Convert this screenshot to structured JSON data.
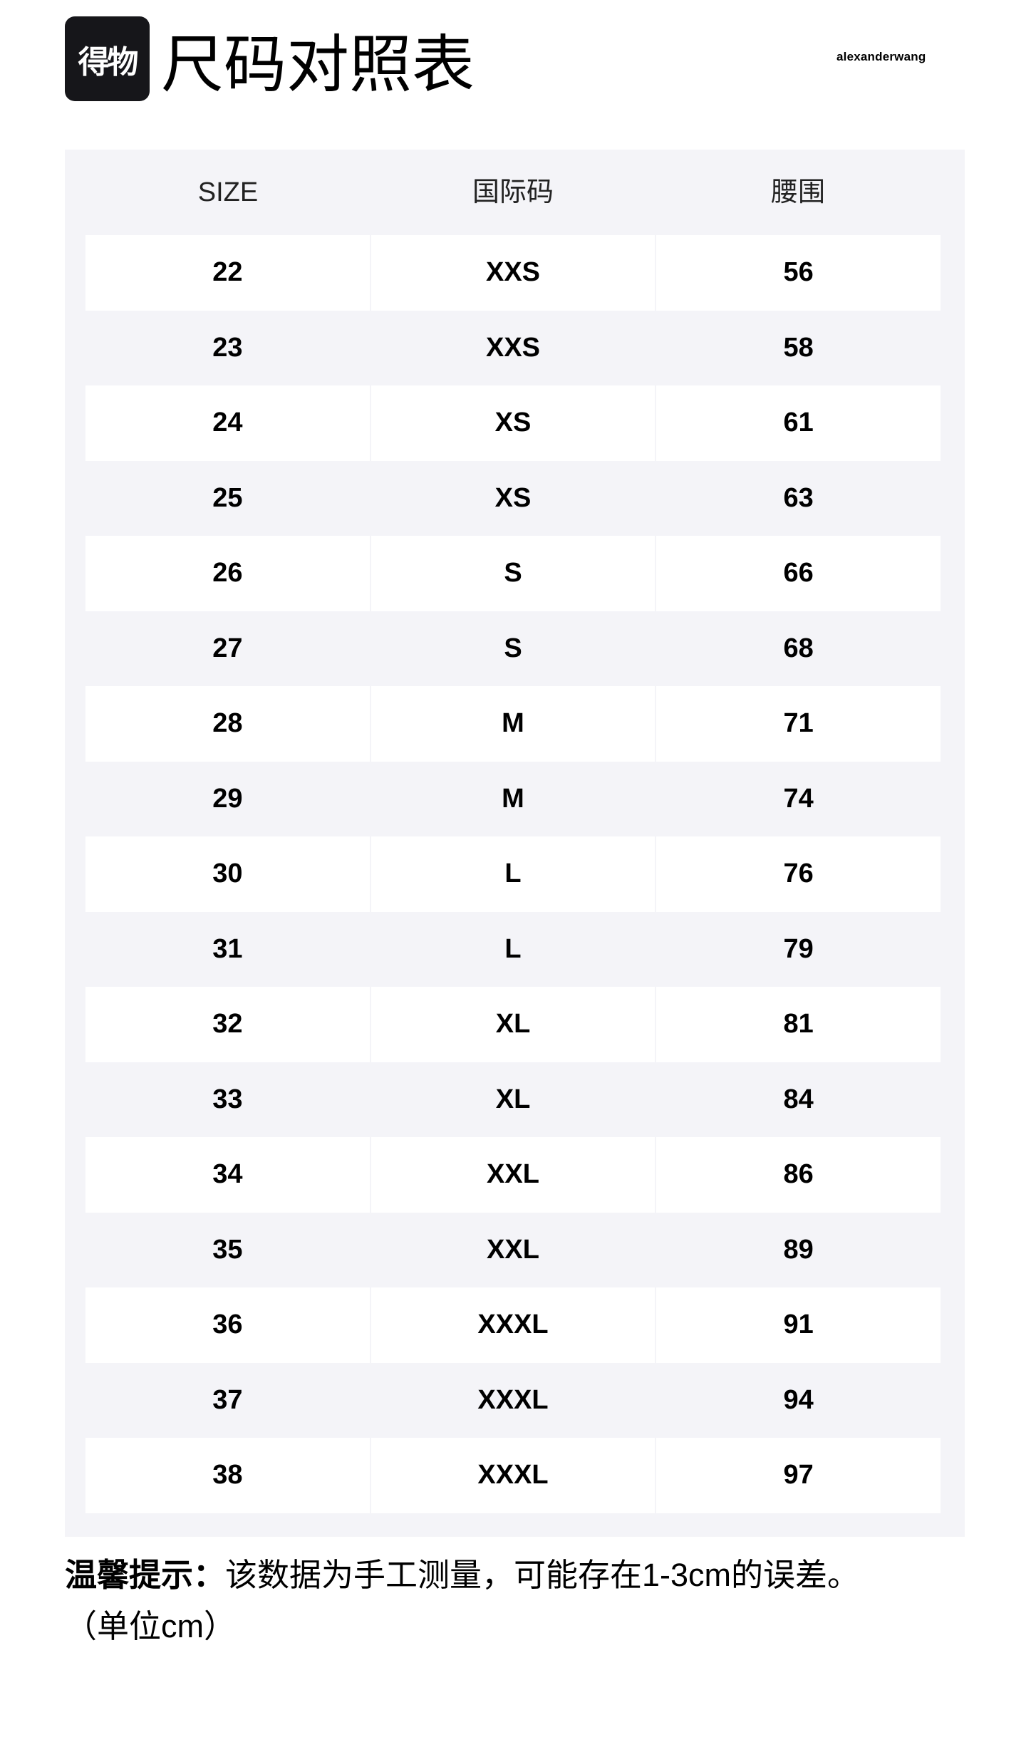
{
  "header": {
    "logo_text": "得物",
    "title": "尺码对照表",
    "brand": "alexanderwang"
  },
  "table": {
    "columns": [
      "SIZE",
      "国际码",
      "腰围"
    ],
    "rows": [
      [
        "22",
        "XXS",
        "56"
      ],
      [
        "23",
        "XXS",
        "58"
      ],
      [
        "24",
        "XS",
        "61"
      ],
      [
        "25",
        "XS",
        "63"
      ],
      [
        "26",
        "S",
        "66"
      ],
      [
        "27",
        "S",
        "68"
      ],
      [
        "28",
        "M",
        "71"
      ],
      [
        "29",
        "M",
        "74"
      ],
      [
        "30",
        "L",
        "76"
      ],
      [
        "31",
        "L",
        "79"
      ],
      [
        "32",
        "XL",
        "81"
      ],
      [
        "33",
        "XL",
        "84"
      ],
      [
        "34",
        "XXL",
        "86"
      ],
      [
        "35",
        "XXL",
        "89"
      ],
      [
        "36",
        "XXXL",
        "91"
      ],
      [
        "37",
        "XXXL",
        "94"
      ],
      [
        "38",
        "XXXL",
        "97"
      ]
    ]
  },
  "footer": {
    "tip_label": "温馨提示：",
    "tip_text": "该数据为手工测量，可能存在1-3cm的误差。",
    "unit": "（单位cm）"
  },
  "colors": {
    "table_bg": "#f4f4f8",
    "logo_bg": "#16161a"
  }
}
